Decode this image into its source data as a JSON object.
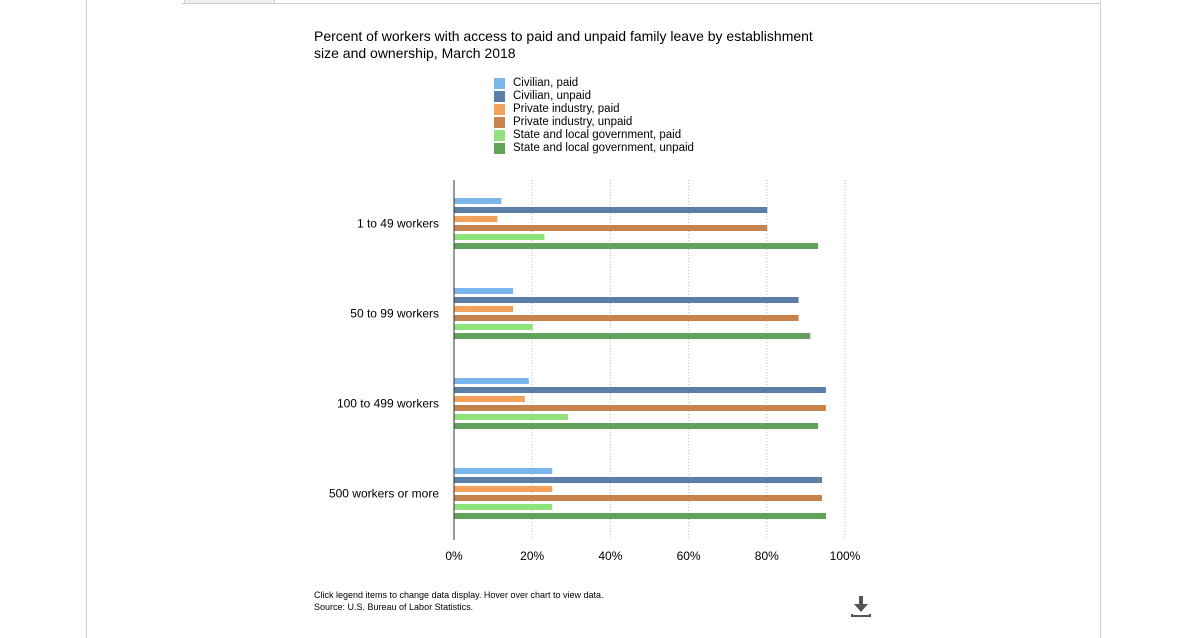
{
  "chart_data": {
    "type": "bar",
    "orientation": "horizontal",
    "title": "Percent of workers with access to paid and unpaid family leave by establishment size and ownership, March 2018",
    "categories": [
      "1 to 49 workers",
      "50 to 99 workers",
      "100 to 499 workers",
      "500 workers or more"
    ],
    "series": [
      {
        "name": "Civilian, paid",
        "color": "#7cb5ec",
        "values": [
          12,
          15,
          19,
          25
        ]
      },
      {
        "name": "Civilian, unpaid",
        "color": "#5b7fa6",
        "values": [
          80,
          88,
          95,
          94
        ]
      },
      {
        "name": "Private industry, paid",
        "color": "#f3a15b",
        "values": [
          11,
          15,
          18,
          25
        ]
      },
      {
        "name": "Private industry, unpaid",
        "color": "#c7834d",
        "values": [
          80,
          88,
          95,
          94
        ]
      },
      {
        "name": "State and local government, paid",
        "color": "#90e27a",
        "values": [
          23,
          20,
          29,
          25
        ]
      },
      {
        "name": "State and local government, unpaid",
        "color": "#62a25a",
        "values": [
          93,
          91,
          93,
          95
        ]
      }
    ],
    "xlim": [
      0,
      100
    ],
    "xticks": [
      "0%",
      "20%",
      "40%",
      "60%",
      "80%",
      "100%"
    ],
    "xticks_values": [
      0,
      20,
      40,
      60,
      80,
      100
    ],
    "grid": "vertical dotted",
    "legend": "top"
  },
  "notes": {
    "instruction": "Click legend items to change data display. Hover over chart to view data.",
    "source": "Source: U.S. Bureau of Labor Statistics."
  },
  "icons": {
    "download": "download-icon"
  }
}
